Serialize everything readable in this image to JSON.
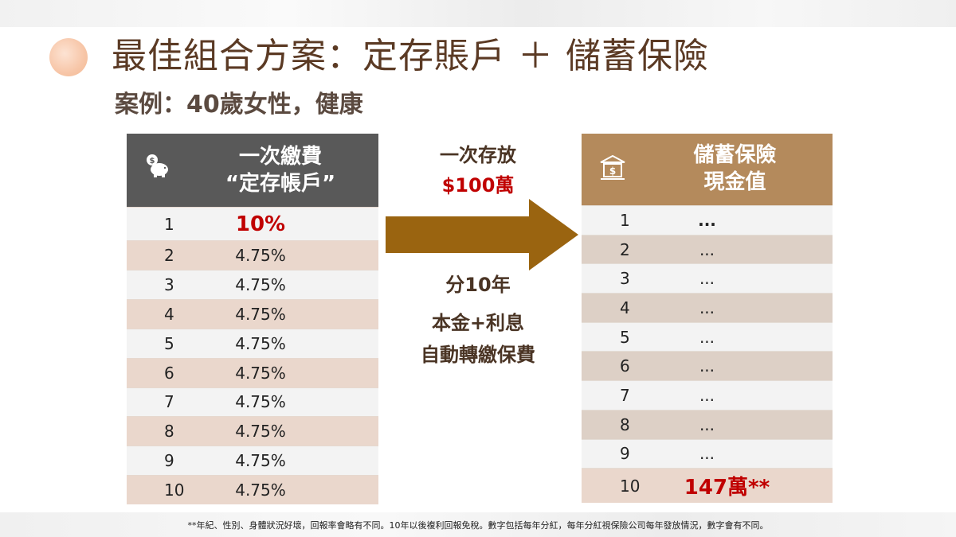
{
  "title": "最佳組合方案：定存賬戶 ＋ 儲蓄保險",
  "subtitle": "案例：40歲女性，健康",
  "left_table": {
    "header_line1": "一次繳費",
    "header_line2": "“定存帳戶”",
    "icon": "piggy-bank-icon",
    "rows": [
      {
        "year": "1",
        "rate": "10%"
      },
      {
        "year": "2",
        "rate": "4.75%"
      },
      {
        "year": "3",
        "rate": "4.75%"
      },
      {
        "year": "4",
        "rate": "4.75%"
      },
      {
        "year": "5",
        "rate": "4.75%"
      },
      {
        "year": "6",
        "rate": "4.75%"
      },
      {
        "year": "7",
        "rate": "4.75%"
      },
      {
        "year": "8",
        "rate": "4.75%"
      },
      {
        "year": "9",
        "rate": "4.75%"
      },
      {
        "year": "10",
        "rate": "4.75%"
      }
    ]
  },
  "middle": {
    "line1": "一次存放",
    "amount": "$100萬",
    "line2": "分10年",
    "line3": "本金+利息",
    "line4": "自動轉繳保費",
    "arrow_color": "#9a6410"
  },
  "right_table": {
    "header_line1": "儲蓄保險",
    "header_line2": "現金值",
    "icon": "bank-icon",
    "rows": [
      {
        "year": "1",
        "value": "..."
      },
      {
        "year": "2",
        "value": "..."
      },
      {
        "year": "3",
        "value": "..."
      },
      {
        "year": "4",
        "value": "..."
      },
      {
        "year": "5",
        "value": "..."
      },
      {
        "year": "6",
        "value": "..."
      },
      {
        "year": "7",
        "value": "..."
      },
      {
        "year": "8",
        "value": "..."
      },
      {
        "year": "9",
        "value": "..."
      },
      {
        "year": "10",
        "value": "147萬**"
      }
    ]
  },
  "footnote": "**年紀、性別、身體狀況好壞，回報率會略有不同。10年以後複利回報免稅。數字包括每年分紅，每年分紅視保險公司每年發放情況，數字會有不同。",
  "colors": {
    "title": "#5b3a24",
    "left_header": "#595959",
    "right_header": "#b48a5c",
    "highlight": "#c00000"
  }
}
